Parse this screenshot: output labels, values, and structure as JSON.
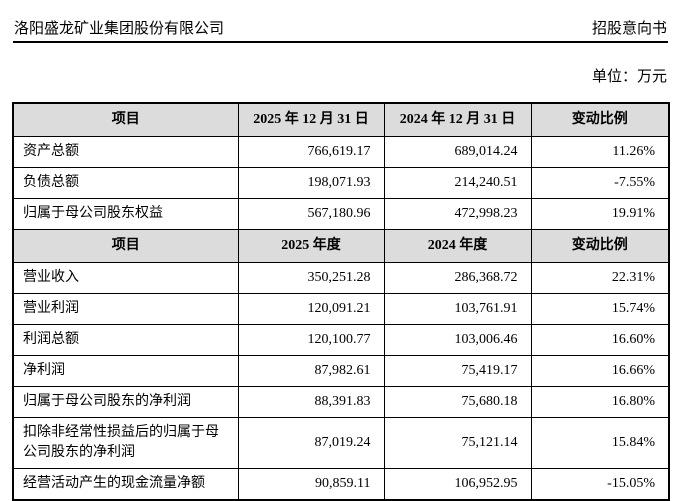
{
  "page_header": {
    "company": "洛阳盛龙矿业集团股份有限公司",
    "doc_type": "招股意向书"
  },
  "unit_label": "单位：万元",
  "colors": {
    "header_row_bg": "#dcdcdc",
    "border": "#000000",
    "text": "#000000"
  },
  "balance_table": {
    "headers": {
      "item": "项目",
      "col_2025": "2025 年 12 月 31 日",
      "col_2024": "2024 年 12 月 31 日",
      "change": "变动比例"
    },
    "rows": [
      {
        "item": "资产总额",
        "v2025": "766,619.17",
        "v2024": "689,014.24",
        "change": "11.26%"
      },
      {
        "item": "负债总额",
        "v2025": "198,071.93",
        "v2024": "214,240.51",
        "change": "-7.55%"
      },
      {
        "item": "归属于母公司股东权益",
        "v2025": "567,180.96",
        "v2024": "472,998.23",
        "change": "19.91%"
      }
    ]
  },
  "income_table": {
    "headers": {
      "item": "项目",
      "col_2025": "2025 年度",
      "col_2024": "2024 年度",
      "change": "变动比例"
    },
    "rows": [
      {
        "item": "营业收入",
        "v2025": "350,251.28",
        "v2024": "286,368.72",
        "change": "22.31%"
      },
      {
        "item": "营业利润",
        "v2025": "120,091.21",
        "v2024": "103,761.91",
        "change": "15.74%"
      },
      {
        "item": "利润总额",
        "v2025": "120,100.77",
        "v2024": "103,006.46",
        "change": "16.60%"
      },
      {
        "item": "净利润",
        "v2025": "87,982.61",
        "v2024": "75,419.17",
        "change": "16.66%"
      },
      {
        "item": "归属于母公司股东的净利润",
        "v2025": "88,391.83",
        "v2024": "75,680.18",
        "change": "16.80%"
      },
      {
        "item": "扣除非经常性损益后的归属于母公司股东的净利润",
        "v2025": "87,019.24",
        "v2024": "75,121.14",
        "change": "15.84%"
      },
      {
        "item": "经营活动产生的现金流量净额",
        "v2025": "90,859.11",
        "v2024": "106,952.95",
        "change": "-15.05%"
      }
    ]
  }
}
